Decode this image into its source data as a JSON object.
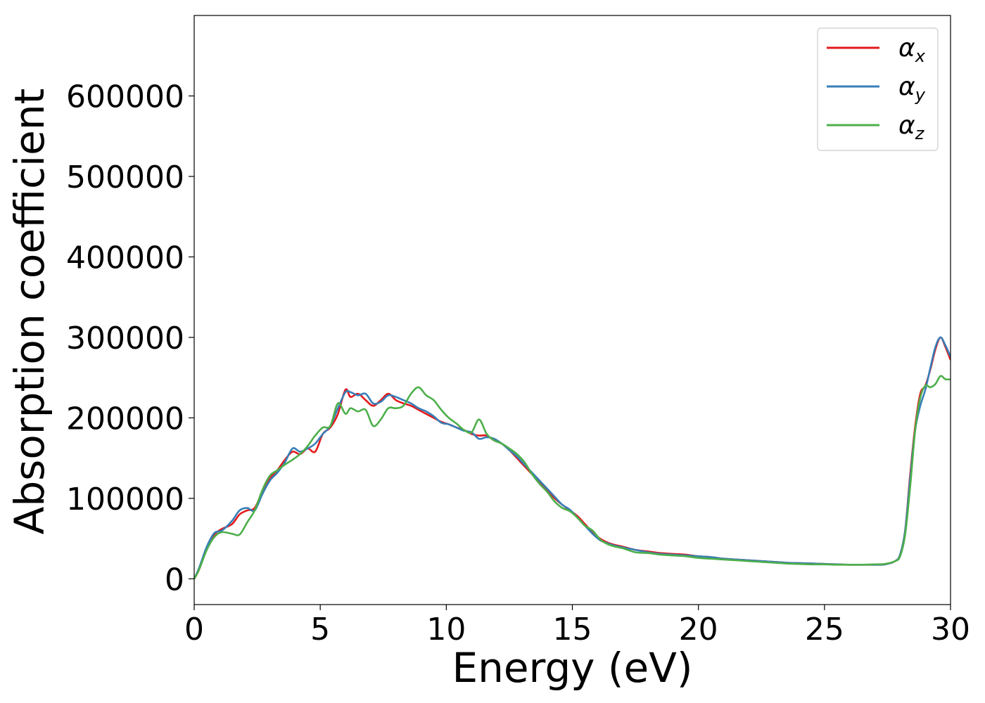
{
  "chart_data": {
    "type": "line",
    "title": "",
    "xlabel": "Energy (eV)",
    "ylabel": "Absorption coefficient",
    "xlim": [
      0,
      30
    ],
    "ylim": [
      -32000,
      700000
    ],
    "xticks": [
      "0",
      "5",
      "10",
      "15",
      "20",
      "25",
      "30"
    ],
    "yticks": [
      "0",
      "100000",
      "200000",
      "300000",
      "400000",
      "500000",
      "600000"
    ],
    "grid": false,
    "legend_position": "top-right",
    "series": [
      {
        "name": "α",
        "subscript": "x",
        "color": "#e41a1c",
        "x": [
          0,
          0.2,
          0.5,
          0.8,
          1.1,
          1.5,
          1.8,
          2.1,
          2.4,
          2.7,
          3.0,
          3.3,
          3.6,
          3.9,
          4.2,
          4.5,
          4.8,
          5.1,
          5.4,
          5.7,
          6.0,
          6.2,
          6.5,
          6.8,
          7.1,
          7.4,
          7.7,
          8.0,
          8.3,
          8.6,
          8.9,
          9.2,
          9.5,
          9.8,
          10.1,
          10.4,
          10.7,
          11.0,
          11.3,
          11.6,
          11.9,
          12.2,
          12.5,
          12.8,
          13.1,
          13.4,
          13.7,
          14.0,
          14.3,
          14.6,
          14.9,
          15.2,
          15.5,
          15.8,
          16.1,
          16.4,
          16.7,
          17.0,
          17.5,
          18.0,
          18.5,
          19.0,
          19.5,
          20.0,
          20.5,
          21.0,
          21.5,
          22.0,
          22.5,
          23.0,
          23.5,
          24.0,
          24.5,
          25.0,
          25.5,
          26.0,
          26.5,
          27.0,
          27.4,
          27.8,
          28.0,
          28.2,
          28.4,
          28.6,
          28.8,
          29.0,
          29.2,
          29.4,
          29.6,
          29.8,
          30.0
        ],
        "values": [
          0,
          12000,
          38000,
          55000,
          62000,
          68000,
          80000,
          85000,
          88000,
          108000,
          125000,
          135000,
          148000,
          158000,
          155000,
          162000,
          158000,
          180000,
          188000,
          205000,
          235000,
          226000,
          230000,
          222000,
          215000,
          222000,
          230000,
          222000,
          218000,
          215000,
          210000,
          205000,
          200000,
          195000,
          192000,
          188000,
          185000,
          180000,
          178000,
          178000,
          172000,
          168000,
          160000,
          150000,
          140000,
          130000,
          120000,
          110000,
          100000,
          92000,
          85000,
          78000,
          68000,
          58000,
          50000,
          45000,
          42000,
          40000,
          36000,
          34000,
          32000,
          31000,
          30000,
          28000,
          27000,
          25000,
          24000,
          23000,
          22000,
          21000,
          20000,
          19500,
          19000,
          18500,
          18000,
          17500,
          17500,
          17500,
          18000,
          22000,
          30000,
          60000,
          130000,
          190000,
          230000,
          240000,
          260000,
          285000,
          300000,
          288000,
          272000
        ]
      },
      {
        "name": "α",
        "subscript": "y",
        "color": "#377eb8",
        "x": [
          0,
          0.2,
          0.5,
          0.8,
          1.1,
          1.5,
          1.8,
          2.1,
          2.4,
          2.7,
          3.0,
          3.3,
          3.6,
          3.9,
          4.2,
          4.5,
          4.8,
          5.1,
          5.4,
          5.7,
          6.0,
          6.2,
          6.5,
          6.8,
          7.1,
          7.4,
          7.7,
          8.0,
          8.3,
          8.6,
          8.9,
          9.2,
          9.5,
          9.8,
          10.1,
          10.4,
          10.7,
          11.0,
          11.3,
          11.6,
          11.9,
          12.2,
          12.5,
          12.8,
          13.1,
          13.4,
          13.7,
          14.0,
          14.3,
          14.6,
          14.9,
          15.2,
          15.5,
          15.8,
          16.1,
          16.4,
          16.7,
          17.0,
          17.5,
          18.0,
          18.5,
          19.0,
          19.5,
          20.0,
          20.5,
          21.0,
          21.5,
          22.0,
          22.5,
          23.0,
          23.5,
          24.0,
          24.5,
          25.0,
          25.5,
          26.0,
          26.5,
          27.0,
          27.4,
          27.8,
          28.0,
          28.2,
          28.4,
          28.6,
          28.8,
          29.0,
          29.2,
          29.4,
          29.6,
          29.8,
          30.0
        ],
        "values": [
          0,
          14000,
          40000,
          57000,
          60000,
          72000,
          85000,
          88000,
          85000,
          105000,
          122000,
          132000,
          145000,
          162000,
          158000,
          162000,
          168000,
          180000,
          190000,
          212000,
          232000,
          232000,
          228000,
          230000,
          218000,
          220000,
          228000,
          226000,
          222000,
          218000,
          212000,
          208000,
          202000,
          194000,
          192000,
          188000,
          184000,
          182000,
          174000,
          176000,
          174000,
          168000,
          160000,
          152000,
          142000,
          132000,
          122000,
          112000,
          102000,
          92000,
          86000,
          76000,
          66000,
          56000,
          48000,
          44000,
          41000,
          39000,
          36000,
          33000,
          31000,
          30000,
          29000,
          28000,
          27000,
          25000,
          24000,
          23000,
          22000,
          21000,
          20000,
          19500,
          19000,
          18500,
          18000,
          17500,
          17500,
          17500,
          18000,
          22000,
          30000,
          60000,
          125000,
          185000,
          215000,
          235000,
          262000,
          288000,
          300000,
          290000,
          276000
        ]
      },
      {
        "name": "α",
        "subscript": "z",
        "color": "#4daf4a",
        "x": [
          0,
          0.2,
          0.5,
          0.8,
          1.1,
          1.5,
          1.8,
          2.1,
          2.4,
          2.7,
          3.0,
          3.3,
          3.6,
          3.9,
          4.2,
          4.5,
          4.8,
          5.1,
          5.4,
          5.7,
          6.0,
          6.2,
          6.5,
          6.8,
          7.1,
          7.4,
          7.7,
          8.0,
          8.3,
          8.6,
          8.9,
          9.2,
          9.5,
          9.8,
          10.1,
          10.4,
          10.7,
          11.0,
          11.3,
          11.6,
          11.9,
          12.2,
          12.5,
          12.8,
          13.1,
          13.4,
          13.7,
          14.0,
          14.3,
          14.6,
          14.9,
          15.2,
          15.5,
          15.8,
          16.1,
          16.4,
          16.7,
          17.0,
          17.5,
          18.0,
          18.5,
          19.0,
          19.5,
          20.0,
          20.5,
          21.0,
          21.5,
          22.0,
          22.5,
          23.0,
          23.5,
          24.0,
          24.5,
          25.0,
          25.5,
          26.0,
          26.5,
          27.0,
          27.4,
          27.8,
          28.0,
          28.2,
          28.4,
          28.6,
          28.8,
          29.0,
          29.2,
          29.4,
          29.6,
          29.8,
          30.0
        ],
        "values": [
          0,
          12000,
          36000,
          52000,
          58000,
          56000,
          55000,
          70000,
          85000,
          110000,
          128000,
          135000,
          142000,
          148000,
          155000,
          165000,
          178000,
          188000,
          190000,
          218000,
          205000,
          212000,
          208000,
          210000,
          190000,
          198000,
          212000,
          212000,
          215000,
          230000,
          238000,
          228000,
          222000,
          210000,
          200000,
          193000,
          185000,
          182000,
          198000,
          180000,
          172000,
          168000,
          162000,
          155000,
          145000,
          130000,
          118000,
          108000,
          96000,
          88000,
          84000,
          76000,
          66000,
          60000,
          49000,
          43000,
          40000,
          38000,
          33000,
          32000,
          30000,
          29000,
          28000,
          26000,
          25000,
          24000,
          23000,
          22000,
          21000,
          20000,
          19000,
          18500,
          18000,
          18000,
          17500,
          17500,
          17500,
          18000,
          18500,
          22000,
          28000,
          55000,
          115000,
          185000,
          225000,
          240000,
          238000,
          242000,
          252000,
          248000,
          248000
        ]
      }
    ]
  }
}
